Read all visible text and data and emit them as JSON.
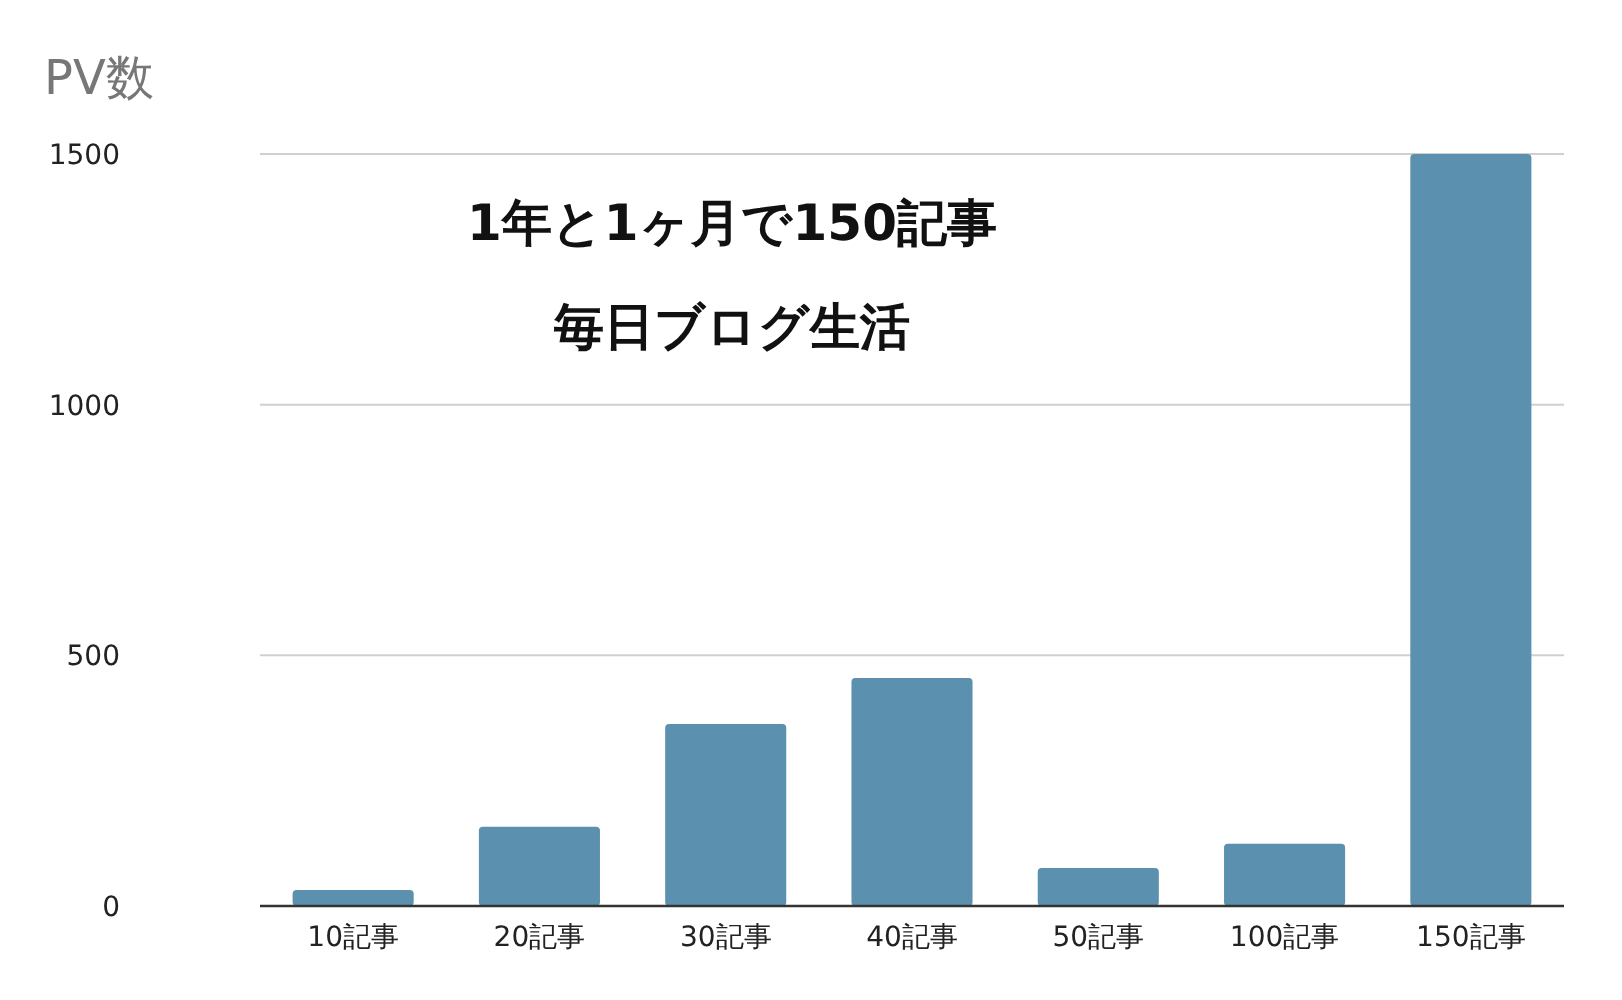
{
  "chart_data": {
    "type": "bar",
    "ylabel": "PV数",
    "categories": [
      "10記事",
      "20記事",
      "30記事",
      "40記事",
      "50記事",
      "100記事",
      "150記事"
    ],
    "values": [
      32,
      158,
      363,
      455,
      76,
      124,
      1500
    ],
    "color": "#5b91ae",
    "ylim": [
      0,
      1500
    ],
    "yticks": [
      0,
      500,
      1000,
      1500
    ],
    "grid": "y",
    "annotations": [
      "1年と1ヶ月で150記事",
      "毎日ブログ生活"
    ]
  }
}
